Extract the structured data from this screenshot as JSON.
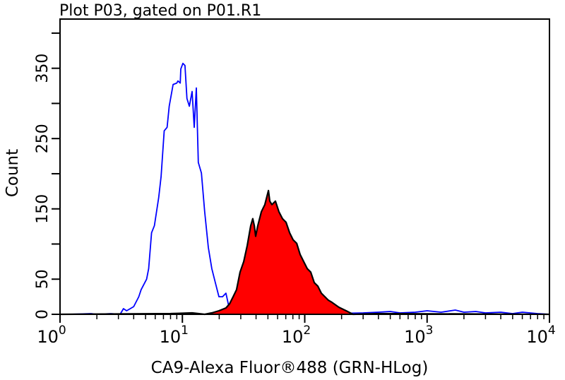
{
  "chart_data": {
    "type": "area",
    "title": "Plot P03, gated on P01.R1",
    "xlabel": "CA9-Alexa Fluor®488 (GRN-HLog)",
    "ylabel": "Count",
    "x_scale": "log",
    "xlim": [
      1,
      10000
    ],
    "ylim": [
      0,
      420
    ],
    "x_ticks": [
      {
        "base": "10",
        "exp": "0",
        "value": 1
      },
      {
        "base": "10",
        "exp": "1",
        "value": 10
      },
      {
        "base": "10",
        "exp": "2",
        "value": 100
      },
      {
        "base": "10",
        "exp": "3",
        "value": 1000
      },
      {
        "base": "10",
        "exp": "4",
        "value": 10000
      }
    ],
    "y_tick_labels": [
      "0",
      "50",
      "150",
      "250",
      "350"
    ],
    "y_ticks_minor": [
      100,
      200,
      300,
      400
    ],
    "grid": false,
    "series": [
      {
        "style": "outline",
        "color": "#0000ff",
        "points": [
          [
            1.2,
            0
          ],
          [
            1.8,
            1
          ],
          [
            2.0,
            0
          ],
          [
            2.6,
            1
          ],
          [
            3.1,
            0
          ],
          [
            3.3,
            8
          ],
          [
            3.5,
            5
          ],
          [
            4.0,
            11
          ],
          [
            4.4,
            25
          ],
          [
            4.6,
            35
          ],
          [
            5.1,
            50
          ],
          [
            5.3,
            65
          ],
          [
            5.6,
            116
          ],
          [
            5.9,
            126
          ],
          [
            6.4,
            166
          ],
          [
            6.7,
            196
          ],
          [
            7.1,
            261
          ],
          [
            7.5,
            266
          ],
          [
            7.8,
            296
          ],
          [
            8.4,
            327
          ],
          [
            9.0,
            329
          ],
          [
            9.2,
            332
          ],
          [
            9.6,
            329
          ],
          [
            9.7,
            349
          ],
          [
            10.1,
            357
          ],
          [
            10.5,
            354
          ],
          [
            10.9,
            307
          ],
          [
            11.4,
            296
          ],
          [
            12.0,
            317
          ],
          [
            12.5,
            266
          ],
          [
            13.0,
            322
          ],
          [
            13.5,
            216
          ],
          [
            14.3,
            201
          ],
          [
            15.2,
            146
          ],
          [
            16.3,
            95
          ],
          [
            17.4,
            65
          ],
          [
            18.6,
            45
          ],
          [
            19.9,
            25
          ],
          [
            21.3,
            25
          ],
          [
            22.7,
            30
          ],
          [
            24.6,
            2
          ],
          [
            26,
            0
          ],
          [
            40,
            1
          ],
          [
            80,
            2
          ],
          [
            150,
            1
          ],
          [
            300,
            2
          ],
          [
            400,
            3
          ],
          [
            500,
            4
          ],
          [
            600,
            2
          ],
          [
            800,
            3
          ],
          [
            1000,
            5
          ],
          [
            1300,
            3
          ],
          [
            1700,
            6
          ],
          [
            2000,
            3
          ],
          [
            2500,
            4
          ],
          [
            3000,
            2
          ],
          [
            4000,
            3
          ],
          [
            5000,
            1
          ],
          [
            6000,
            3
          ],
          [
            8000,
            1
          ],
          [
            10000,
            0
          ]
        ]
      },
      {
        "style": "filled",
        "color": "#ff0000",
        "outline_color": "#000000",
        "points": [
          [
            1.0,
            0
          ],
          [
            8,
            1
          ],
          [
            12,
            2
          ],
          [
            15.2,
            0
          ],
          [
            17.4,
            2
          ],
          [
            19.9,
            5
          ],
          [
            22.7,
            9
          ],
          [
            24.3,
            15
          ],
          [
            26,
            25
          ],
          [
            27.7,
            35
          ],
          [
            29.6,
            60
          ],
          [
            31.7,
            75
          ],
          [
            33.9,
            98
          ],
          [
            36.2,
            126
          ],
          [
            37.6,
            136
          ],
          [
            38.7,
            126
          ],
          [
            39.7,
            111
          ],
          [
            41.3,
            126
          ],
          [
            44.2,
            146
          ],
          [
            47.2,
            156
          ],
          [
            50.5,
            176
          ],
          [
            51.8,
            161
          ],
          [
            53.9,
            156
          ],
          [
            57.6,
            161
          ],
          [
            61.5,
            146
          ],
          [
            65.8,
            136
          ],
          [
            70.3,
            131
          ],
          [
            75.2,
            116
          ],
          [
            80.3,
            106
          ],
          [
            85.9,
            101
          ],
          [
            91.7,
            85
          ],
          [
            98,
            75
          ],
          [
            104.7,
            65
          ],
          [
            112,
            60
          ],
          [
            119.7,
            45
          ],
          [
            128,
            40
          ],
          [
            136.7,
            30
          ],
          [
            146,
            25
          ],
          [
            156,
            20
          ],
          [
            167,
            17
          ],
          [
            190,
            10
          ],
          [
            218,
            5
          ],
          [
            248,
            0
          ],
          [
            400,
            1
          ],
          [
            10000,
            0
          ]
        ]
      }
    ]
  }
}
